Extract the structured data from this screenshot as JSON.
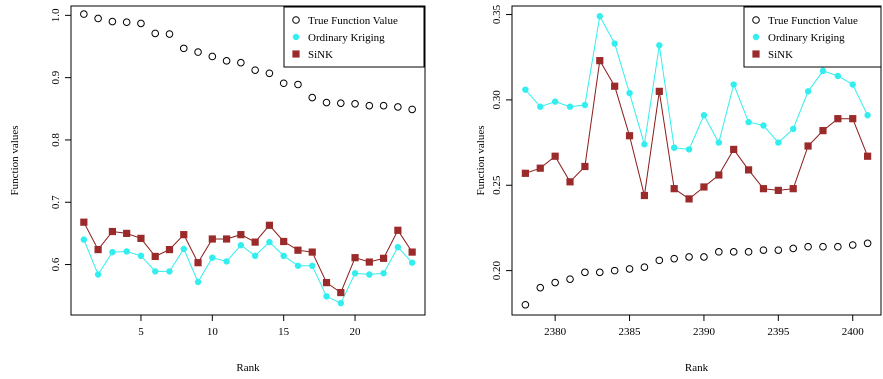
{
  "colors": {
    "true_value": "#000000",
    "kriging": "#33eeee",
    "sink": "#9b2a2a",
    "sink_line": "#8b1a1a"
  },
  "chart_data": [
    {
      "type": "scatter",
      "xlabel": "Rank",
      "ylabel": "Function values",
      "xlim": [
        0.1,
        24.9
      ],
      "ylim": [
        0.519,
        1.015
      ],
      "xticks": [
        5,
        10,
        15,
        20
      ],
      "yticks": [
        0.6,
        0.7,
        0.8,
        0.9,
        1.0
      ],
      "ytick_labels": [
        "0.6",
        "0.7",
        "0.8",
        "0.9",
        "1.0"
      ],
      "legend_position": "top-right",
      "legend": [
        "True Function Value",
        "Ordinary Kriging",
        "SiNK"
      ],
      "x": [
        1,
        2,
        3,
        4,
        5,
        6,
        7,
        8,
        9,
        10,
        11,
        12,
        13,
        14,
        15,
        16,
        17,
        18,
        19,
        20,
        21,
        22,
        23,
        24
      ],
      "series": [
        {
          "name": "True Function Value",
          "marker": "open-circle",
          "line": false,
          "values": [
            1.002,
            0.995,
            0.99,
            0.989,
            0.987,
            0.971,
            0.97,
            0.947,
            0.941,
            0.934,
            0.927,
            0.924,
            0.912,
            0.907,
            0.891,
            0.889,
            0.868,
            0.86,
            0.859,
            0.858,
            0.855,
            0.855,
            0.853,
            0.849
          ]
        },
        {
          "name": "Ordinary Kriging",
          "marker": "dot",
          "line": true,
          "values": [
            0.64,
            0.584,
            0.62,
            0.621,
            0.614,
            0.589,
            0.589,
            0.625,
            0.572,
            0.611,
            0.605,
            0.631,
            0.614,
            0.636,
            0.614,
            0.598,
            0.598,
            0.549,
            0.538,
            0.586,
            0.584,
            0.586,
            0.628,
            0.603
          ]
        },
        {
          "name": "SiNK",
          "marker": "square",
          "line": true,
          "values": [
            0.668,
            0.624,
            0.653,
            0.65,
            0.642,
            0.613,
            0.624,
            0.648,
            0.603,
            0.641,
            0.641,
            0.648,
            0.636,
            0.663,
            0.637,
            0.623,
            0.62,
            0.571,
            0.555,
            0.611,
            0.604,
            0.61,
            0.655,
            0.62
          ]
        }
      ]
    },
    {
      "type": "scatter",
      "xlabel": "Rank",
      "ylabel": "Function values",
      "xlim": [
        2377.1,
        2401.9
      ],
      "ylim": [
        0.174,
        0.355
      ],
      "xticks": [
        2380,
        2385,
        2390,
        2395,
        2400
      ],
      "yticks": [
        0.2,
        0.25,
        0.3,
        0.35
      ],
      "ytick_labels": [
        "0.20",
        "0.25",
        "0.30",
        "0.35"
      ],
      "legend_position": "top-right",
      "legend": [
        "True Function Value",
        "Ordinary Kriging",
        "SiNK"
      ],
      "x": [
        2378,
        2379,
        2380,
        2381,
        2382,
        2383,
        2384,
        2385,
        2386,
        2387,
        2388,
        2389,
        2390,
        2391,
        2392,
        2393,
        2394,
        2395,
        2396,
        2397,
        2398,
        2399,
        2400,
        2401
      ],
      "series": [
        {
          "name": "True Function Value",
          "marker": "open-circle",
          "line": false,
          "values": [
            0.18,
            0.19,
            0.193,
            0.195,
            0.199,
            0.199,
            0.2,
            0.201,
            0.202,
            0.206,
            0.207,
            0.208,
            0.208,
            0.211,
            0.211,
            0.211,
            0.212,
            0.212,
            0.213,
            0.214,
            0.214,
            0.214,
            0.215,
            0.216
          ]
        },
        {
          "name": "Ordinary Kriging",
          "marker": "dot",
          "line": true,
          "values": [
            0.306,
            0.296,
            0.299,
            0.296,
            0.297,
            0.349,
            0.333,
            0.304,
            0.274,
            0.332,
            0.272,
            0.271,
            0.291,
            0.275,
            0.309,
            0.287,
            0.285,
            0.275,
            0.283,
            0.305,
            0.317,
            0.314,
            0.309,
            0.291
          ]
        },
        {
          "name": "SiNK",
          "marker": "square",
          "line": true,
          "values": [
            0.257,
            0.26,
            0.267,
            0.252,
            0.261,
            0.323,
            0.308,
            0.279,
            0.244,
            0.305,
            0.248,
            0.242,
            0.249,
            0.256,
            0.271,
            0.259,
            0.248,
            0.247,
            0.248,
            0.273,
            0.282,
            0.289,
            0.289,
            0.267
          ]
        }
      ]
    }
  ]
}
